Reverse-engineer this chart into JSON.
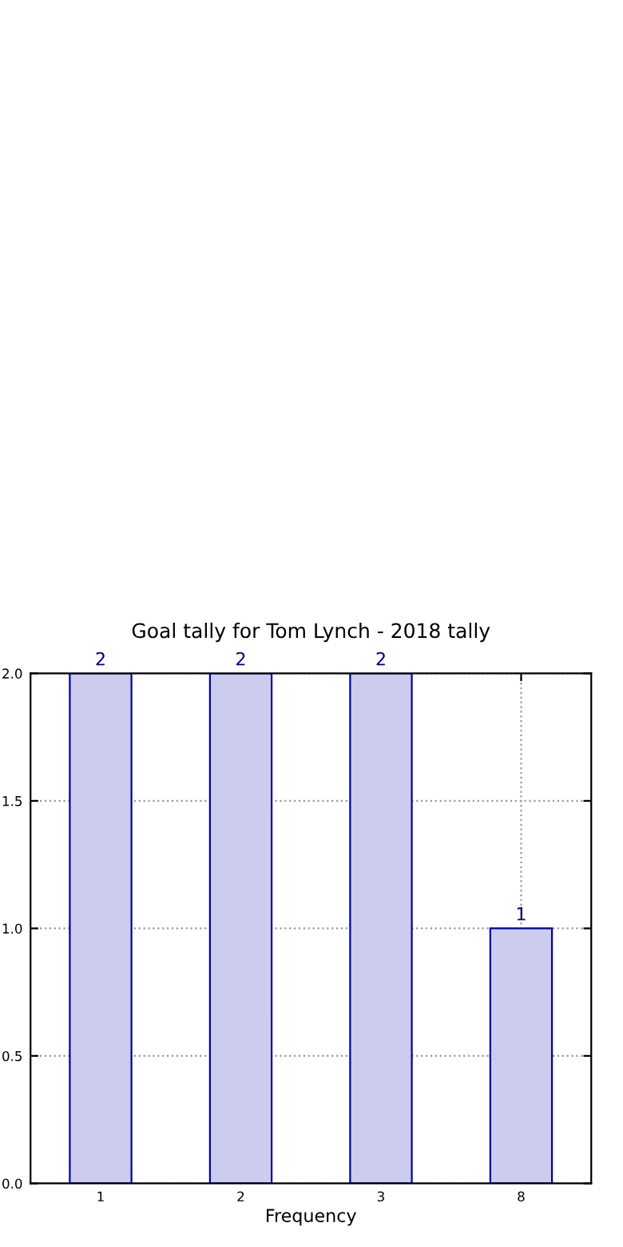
{
  "chart_data": {
    "type": "bar",
    "title": "Goal tally for Tom Lynch - 2018 tally",
    "xlabel": "Frequency",
    "categories": [
      "1",
      "2",
      "3",
      "8"
    ],
    "values": [
      2,
      2,
      2,
      1
    ],
    "color": "#ccccee",
    "ylim": [
      0,
      2
    ],
    "yticks": [
      {
        "value": 0,
        "label": "0.0"
      },
      0.5,
      {
        "value": 1,
        "label": "1.0"
      },
      1.5,
      {
        "value": 2,
        "label": "2.0"
      }
    ],
    "grid": true,
    "data_labels": true
  }
}
